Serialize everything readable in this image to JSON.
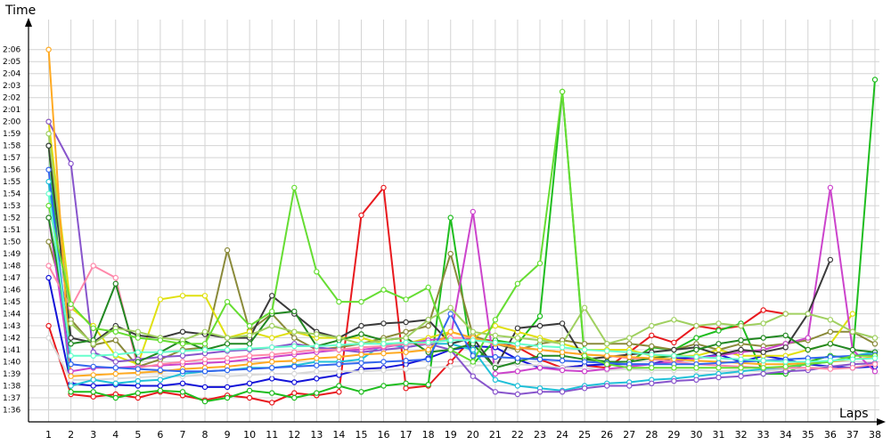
{
  "chart_data": {
    "type": "line",
    "xlabel": "Laps",
    "ylabel": "Time",
    "xlim": [
      0.1,
      38.2
    ],
    "ylim": [
      95,
      128.5
    ],
    "x_ticks": [
      1,
      2,
      3,
      4,
      5,
      6,
      7,
      8,
      9,
      10,
      11,
      12,
      13,
      14,
      15,
      16,
      17,
      18,
      19,
      20,
      21,
      22,
      23,
      24,
      25,
      26,
      27,
      28,
      29,
      30,
      31,
      32,
      33,
      34,
      35,
      36,
      37,
      38
    ],
    "y_ticks": [
      {
        "v": 96,
        "label": "1:36"
      },
      {
        "v": 97,
        "label": "1:37"
      },
      {
        "v": 98,
        "label": "1:38"
      },
      {
        "v": 99,
        "label": "1:39"
      },
      {
        "v": 100,
        "label": "1:40"
      },
      {
        "v": 101,
        "label": "1:41"
      },
      {
        "v": 102,
        "label": "1:42"
      },
      {
        "v": 103,
        "label": "1:43"
      },
      {
        "v": 104,
        "label": "1:44"
      },
      {
        "v": 105,
        "label": "1:45"
      },
      {
        "v": 106,
        "label": "1:46"
      },
      {
        "v": 107,
        "label": "1:47"
      },
      {
        "v": 108,
        "label": "1:48"
      },
      {
        "v": 109,
        "label": "1:49"
      },
      {
        "v": 110,
        "label": "1:50"
      },
      {
        "v": 111,
        "label": "1:51"
      },
      {
        "v": 112,
        "label": "1:52"
      },
      {
        "v": 113,
        "label": "1:53"
      },
      {
        "v": 114,
        "label": "1:54"
      },
      {
        "v": 115,
        "label": "1:55"
      },
      {
        "v": 116,
        "label": "1:56"
      },
      {
        "v": 117,
        "label": "1:57"
      },
      {
        "v": 118,
        "label": "1:58"
      },
      {
        "v": 119,
        "label": "1:59"
      },
      {
        "v": 120,
        "label": "2:00"
      },
      {
        "v": 121,
        "label": "2:01"
      },
      {
        "v": 122,
        "label": "2:02"
      },
      {
        "v": 123,
        "label": "2:03"
      },
      {
        "v": 124,
        "label": "2:04"
      },
      {
        "v": 125,
        "label": "2:05"
      },
      {
        "v": 126,
        "label": "2:06"
      }
    ],
    "grid": true,
    "series": [
      {
        "color": "#e8191e",
        "values": [
          103.0,
          97.3,
          97.1,
          97.3,
          97.0,
          97.5,
          97.2,
          96.8,
          97.2,
          97.0,
          96.6,
          97.4,
          97.2,
          97.5,
          112.2,
          114.5,
          97.8,
          98.0,
          100.0,
          102.0,
          101.7,
          101.2,
          100.2,
          99.5,
          99.7,
          99.5,
          100.8,
          102.2,
          101.6,
          103.0,
          102.7,
          103.0,
          104.3,
          104.0,
          null,
          null,
          null,
          null
        ]
      },
      {
        "color": "#1313d8",
        "values": [
          107.0,
          98.2,
          98.0,
          98.1,
          98.0,
          98.0,
          98.2,
          97.9,
          97.9,
          98.2,
          98.6,
          98.3,
          98.6,
          98.9,
          99.4,
          99.5,
          99.8,
          100.3,
          101.0,
          101.3,
          101.2,
          100.2,
          99.5,
          99.5,
          99.7,
          99.8,
          99.8,
          99.8,
          100.3,
          100.3,
          100.6,
          100.0,
          100.5,
          100.2,
          99.8,
          99.6,
          99.5,
          99.6
        ]
      },
      {
        "color": "#1fbd1f",
        "values": [
          118.0,
          97.5,
          97.5,
          97.0,
          97.4,
          97.6,
          97.5,
          96.7,
          97.0,
          97.6,
          97.4,
          97.0,
          97.4,
          98.0,
          97.5,
          98.0,
          98.2,
          98.1,
          112.0,
          99.8,
          101.8,
          101.5,
          103.8,
          122.5,
          100.3,
          100.0,
          100.0,
          101.2,
          101.0,
          102.0,
          102.6,
          103.2,
          99.0,
          99.0,
          100.0,
          100.5,
          100.3,
          123.5
        ]
      },
      {
        "color": "#d9d9d9",
        "values": [
          102.0,
          98.5,
          98.5,
          98.6,
          98.7,
          98.8,
          98.8,
          98.9,
          98.8,
          98.9,
          99.0,
          99.0,
          99.2,
          99.2,
          99.2,
          99.3,
          99.4,
          99.5,
          99.6,
          99.7,
          99.7,
          99.8,
          99.7,
          99.5,
          99.5,
          99.3,
          99.4,
          99.3,
          99.3,
          99.3,
          99.2,
          99.3,
          99.2,
          99.4,
          99.5,
          99.6,
          99.8,
          99.8
        ]
      },
      {
        "color": "#8a8a3a",
        "values": [
          110.0,
          103.5,
          101.4,
          101.8,
          99.6,
          100.2,
          101.0,
          101.2,
          109.3,
          102.6,
          104.0,
          102.0,
          101.0,
          101.2,
          101.5,
          102.0,
          102.5,
          103.0,
          109.0,
          102.2,
          101.5,
          101.0,
          101.5,
          101.8,
          101.5,
          101.5,
          101.5,
          101.3,
          101.0,
          101.5,
          101.0,
          101.5,
          101.3,
          101.5,
          101.8,
          102.5,
          102.5,
          101.5
        ]
      },
      {
        "color": "#e0e010",
        "values": [
          120.0,
          104.5,
          103.0,
          100.5,
          99.8,
          105.2,
          105.5,
          105.5,
          102.0,
          102.5,
          102.0,
          102.5,
          102.0,
          102.0,
          102.0,
          101.5,
          101.5,
          102.0,
          102.5,
          102.0,
          103.0,
          102.5,
          102.0,
          101.5,
          101.0,
          101.0,
          101.0,
          100.5,
          100.5,
          100.5,
          101.0,
          100.5,
          100.5,
          100.5,
          101.0,
          101.5,
          104.0,
          null
        ]
      },
      {
        "color": "#20c0d8",
        "values": [
          115.0,
          98.0,
          98.5,
          98.2,
          98.4,
          98.5,
          99.0,
          99.2,
          99.3,
          99.5,
          99.5,
          99.7,
          100.0,
          100.0,
          100.2,
          101.5,
          101.2,
          101.5,
          101.5,
          101.0,
          98.5,
          98.0,
          97.8,
          97.6,
          98.0,
          98.2,
          98.3,
          98.5,
          98.6,
          98.8,
          99.0,
          99.2,
          99.4,
          99.5,
          99.8,
          100.0,
          100.5,
          100.8
        ]
      },
      {
        "color": "#8855cc",
        "values": [
          120.0,
          116.5,
          100.8,
          100.0,
          100.2,
          100.4,
          100.5,
          100.7,
          100.9,
          101.0,
          101.2,
          101.5,
          101.2,
          101.0,
          100.8,
          101.0,
          101.2,
          101.5,
          101.0,
          98.8,
          97.5,
          97.3,
          97.5,
          97.5,
          97.8,
          98.0,
          98.0,
          98.2,
          98.4,
          98.5,
          98.7,
          98.8,
          99.0,
          99.2,
          99.3,
          99.6,
          99.8,
          99.9
        ]
      },
      {
        "color": "#cc44cc",
        "values": [
          112.0,
          99.2,
          99.5,
          99.5,
          99.6,
          99.7,
          99.8,
          99.9,
          100.0,
          100.2,
          100.4,
          100.6,
          100.8,
          101.0,
          101.0,
          101.2,
          101.5,
          101.8,
          102.0,
          112.5,
          99.0,
          99.2,
          99.5,
          99.3,
          99.2,
          99.4,
          99.6,
          99.8,
          100.0,
          100.3,
          100.5,
          100.8,
          101.0,
          101.5,
          102.0,
          114.5,
          101.0,
          99.2
        ]
      },
      {
        "color": "#3a3a3a",
        "values": [
          118.0,
          102.0,
          101.6,
          103.0,
          102.2,
          102.0,
          102.5,
          102.3,
          102.0,
          102.0,
          105.5,
          104.0,
          102.5,
          102.0,
          103.0,
          103.2,
          103.3,
          103.5,
          101.5,
          102.0,
          99.5,
          102.8,
          103.0,
          103.2,
          100.2,
          100.4,
          100.6,
          100.8,
          101.0,
          101.2,
          100.6,
          101.0,
          100.8,
          101.2,
          104.0,
          108.5,
          null,
          null
        ]
      },
      {
        "color": "#ff88aa",
        "values": [
          108.0,
          104.5,
          108.0,
          107.0,
          99.5,
          99.8,
          100.0,
          100.2,
          100.3,
          100.5,
          100.6,
          100.8,
          101.0,
          101.0,
          101.2,
          101.3,
          101.5,
          101.5,
          102.0,
          102.0,
          101.5,
          101.2,
          101.0,
          100.8,
          100.6,
          100.5,
          100.3,
          100.2,
          100.0,
          99.8,
          99.7,
          99.6,
          99.5,
          99.5,
          99.5,
          99.4,
          99.5,
          99.8
        ]
      },
      {
        "color": "#228822",
        "values": [
          112.0,
          101.5,
          101.8,
          106.5,
          100.0,
          100.8,
          101.8,
          101.0,
          101.5,
          101.5,
          104.0,
          104.2,
          101.3,
          101.8,
          102.3,
          101.8,
          102.0,
          100.8,
          101.0,
          101.5,
          99.5,
          100.0,
          100.5,
          100.5,
          100.2,
          100.0,
          100.0,
          100.3,
          100.5,
          101.0,
          101.5,
          101.8,
          102.0,
          102.2,
          101.0,
          101.5,
          101.0,
          100.8
        ]
      },
      {
        "color": "#a0d060",
        "values": [
          119.0,
          103.2,
          101.5,
          102.8,
          102.5,
          102.0,
          101.8,
          102.5,
          102.0,
          102.2,
          103.0,
          102.5,
          102.3,
          102.0,
          101.5,
          101.8,
          102.0,
          103.5,
          104.5,
          102.5,
          102.2,
          102.0,
          101.8,
          101.5,
          104.5,
          101.5,
          102.0,
          103.0,
          103.5,
          103.0,
          103.2,
          103.0,
          103.2,
          104.0,
          104.0,
          103.5,
          102.5,
          102.0
        ]
      },
      {
        "color": "#ffaa22",
        "values": [
          126.0,
          98.8,
          98.9,
          99.0,
          99.1,
          99.2,
          99.4,
          99.5,
          99.6,
          99.8,
          100.0,
          100.1,
          100.3,
          100.4,
          100.6,
          100.7,
          100.8,
          101.0,
          102.5,
          102.0,
          101.5,
          101.2,
          101.0,
          100.8,
          100.6,
          100.5,
          100.4,
          100.3,
          100.2,
          100.1,
          100.0,
          99.9,
          99.8,
          99.8,
          99.9,
          100.0,
          100.2,
          100.4
        ]
      },
      {
        "color": "#3366ee",
        "values": [
          116.0,
          99.8,
          99.6,
          99.5,
          99.4,
          99.3,
          99.2,
          99.2,
          99.3,
          99.4,
          99.5,
          99.6,
          99.7,
          99.8,
          99.9,
          100.0,
          100.1,
          100.2,
          104.0,
          100.5,
          100.4,
          100.3,
          100.2,
          100.1,
          100.0,
          99.9,
          99.8,
          99.8,
          99.8,
          99.8,
          99.9,
          100.0,
          100.1,
          100.2,
          100.3,
          100.4,
          100.5,
          100.6
        ]
      },
      {
        "color": "#66dd33",
        "values": [
          113.0,
          104.8,
          102.8,
          102.5,
          102.0,
          101.8,
          101.5,
          101.5,
          105.0,
          103.0,
          104.2,
          114.5,
          107.5,
          105.0,
          105.0,
          106.0,
          105.2,
          106.2,
          101.0,
          100.0,
          103.5,
          106.5,
          108.2,
          122.5,
          100.5,
          99.8,
          99.5,
          99.5,
          99.5,
          99.5,
          99.5,
          99.5,
          99.5,
          99.6,
          99.8,
          100.0,
          100.5,
          100.5
        ]
      },
      {
        "color": "#66ffcc",
        "values": [
          114.0,
          100.5,
          100.5,
          100.6,
          100.8,
          100.8,
          100.9,
          101.0,
          101.0,
          101.1,
          101.2,
          101.3,
          101.3,
          101.4,
          101.5,
          101.5,
          101.6,
          101.6,
          101.8,
          101.8,
          101.6,
          101.5,
          101.3,
          101.2,
          101.0,
          100.9,
          100.8,
          100.6,
          100.5,
          100.4,
          100.3,
          100.2,
          100.1,
          100.0,
          100.0,
          100.1,
          100.2,
          100.3
        ]
      }
    ]
  }
}
